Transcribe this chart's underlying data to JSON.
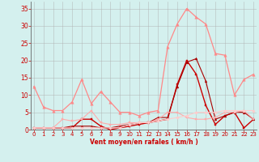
{
  "x": [
    0,
    1,
    2,
    3,
    4,
    5,
    6,
    7,
    8,
    9,
    10,
    11,
    12,
    13,
    14,
    15,
    16,
    17,
    18,
    19,
    20,
    21,
    22,
    23
  ],
  "series": [
    {
      "name": "dark_red_main",
      "color": "#cc0000",
      "linewidth": 1.0,
      "marker": "s",
      "markersize": 2.0,
      "y": [
        0.5,
        0.5,
        0.5,
        0.5,
        0.5,
        3.0,
        3.0,
        1.0,
        0.0,
        0.5,
        1.0,
        1.5,
        2.0,
        2.5,
        3.0,
        13.0,
        20.0,
        16.0,
        7.0,
        1.5,
        4.0,
        5.0,
        0.5,
        3.0
      ]
    },
    {
      "name": "dark_red_flat",
      "color": "#aa0000",
      "linewidth": 0.8,
      "marker": "^",
      "markersize": 2.0,
      "y": [
        0.5,
        0.5,
        0.5,
        0.5,
        1.0,
        1.0,
        1.0,
        0.5,
        0.5,
        1.0,
        1.5,
        2.0,
        2.0,
        3.5,
        3.5,
        12.5,
        19.5,
        20.5,
        14.0,
        3.0,
        4.0,
        5.0,
        5.0,
        3.0
      ]
    },
    {
      "name": "pink_high",
      "color": "#ff8888",
      "linewidth": 0.9,
      "marker": "^",
      "markersize": 2.5,
      "y": [
        12.5,
        6.5,
        5.5,
        5.5,
        8.0,
        14.5,
        7.5,
        11.0,
        8.0,
        5.0,
        5.0,
        4.0,
        5.0,
        5.5,
        24.0,
        30.5,
        35.0,
        32.5,
        30.5,
        22.0,
        21.5,
        10.0,
        14.5,
        16.0
      ]
    },
    {
      "name": "pink_low",
      "color": "#ffaaaa",
      "linewidth": 0.8,
      "marker": "s",
      "markersize": 2.0,
      "y": [
        0.5,
        0.5,
        0.5,
        3.0,
        2.5,
        3.0,
        5.5,
        2.0,
        1.5,
        1.5,
        2.0,
        2.0,
        2.0,
        3.0,
        5.0,
        5.0,
        3.5,
        3.0,
        3.0,
        3.5,
        5.0,
        5.0,
        5.5,
        3.0
      ]
    },
    {
      "name": "pink_trend",
      "color": "#ffcccc",
      "linewidth": 0.8,
      "marker": "D",
      "markersize": 1.8,
      "y": [
        0.5,
        0.5,
        0.5,
        0.5,
        0.5,
        0.5,
        0.5,
        0.5,
        0.5,
        0.5,
        1.5,
        2.0,
        2.0,
        2.5,
        3.0,
        3.5,
        4.0,
        5.0,
        5.0,
        5.0,
        5.5,
        5.5,
        5.5,
        5.5
      ]
    }
  ],
  "ylim": [
    0,
    37
  ],
  "yticks": [
    0,
    5,
    10,
    15,
    20,
    25,
    30,
    35
  ],
  "xlim": [
    -0.3,
    23.3
  ],
  "xlabel": "Vent moyen/en rafales ( km/h )",
  "xlabel_color": "#cc0000",
  "xlabel_fontsize": 5.5,
  "bg_color": "#d4f0ee",
  "grid_color": "#b0b0b0",
  "tick_color": "#cc0000",
  "tick_fontsize": 5,
  "ytick_color": "#cc0000",
  "ytick_fontsize": 5.5
}
